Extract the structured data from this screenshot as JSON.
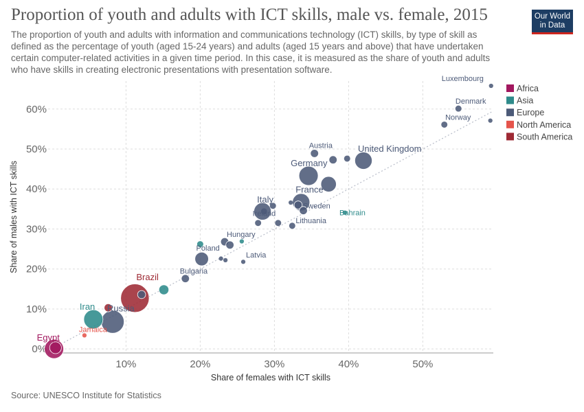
{
  "header": {
    "title": "Proportion of youth and adults with ICT skills, male vs. female, 2015",
    "subtitle": "The proportion of youth and adults with information and communications technology (ICT) skills, by type of skill as defined as the percentage of youth (aged 15-24 years) and adults (aged 15 years and above) that have undertaken certain computer-related activities in a given time period. In this case, it is measured as the share of youth and adults who have skills in creating electronic presentations with presentation software.",
    "logo_line1": "Our World",
    "logo_line2": "in Data"
  },
  "footer": {
    "source": "Source: UNESCO Institute for Statistics"
  },
  "colors": {
    "Africa": "#a2185f",
    "Asia": "#2e8b8b",
    "Europe": "#4c5a78",
    "North America": "#e5544b",
    "South America": "#9e2a34",
    "grid": "#dddddd",
    "reference_line": "#b7bcc8"
  },
  "chart_data": {
    "type": "scatter",
    "title": "Proportion of youth and adults with ICT skills, male vs. female, 2015",
    "xlabel": "Share of females with ICT skills",
    "ylabel": "Share of males with ICT skills",
    "xlim": [
      -0.5,
      59.5
    ],
    "ylim": [
      -1,
      67
    ],
    "x_ticks": [
      10,
      20,
      30,
      40,
      50
    ],
    "x_tick_labels": [
      "10%",
      "20%",
      "30%",
      "40%",
      "50%"
    ],
    "y_ticks": [
      0,
      10,
      20,
      30,
      40,
      50,
      60
    ],
    "y_tick_labels": [
      "0%",
      "10%",
      "20%",
      "30%",
      "40%",
      "50%",
      "60%"
    ],
    "grid": true,
    "reference_line": "y = x",
    "legend_position": "right",
    "legend": [
      "Africa",
      "Asia",
      "Europe",
      "North America",
      "South America"
    ],
    "points": [
      {
        "label": "Luxembourg",
        "region": "Europe",
        "x": 59.2,
        "y": 65.8,
        "size": 1
      },
      {
        "label": "Denmark",
        "region": "Europe",
        "x": 54.8,
        "y": 60.1,
        "size": 2
      },
      {
        "label": "Norway",
        "region": "Europe",
        "x": 52.9,
        "y": 56.1,
        "size": 2
      },
      {
        "label": "",
        "region": "Europe",
        "x": 59.1,
        "y": 57.1,
        "size": 1
      },
      {
        "label": "Austria",
        "region": "Europe",
        "x": 35.4,
        "y": 48.9,
        "size": 3
      },
      {
        "label": "United Kingdom",
        "region": "Europe",
        "x": 42.0,
        "y": 47.1,
        "size": 8
      },
      {
        "label": "",
        "region": "Europe",
        "x": 37.9,
        "y": 47.3,
        "size": 3
      },
      {
        "label": "",
        "region": "Europe",
        "x": 39.8,
        "y": 47.6,
        "size": 2
      },
      {
        "label": "Germany",
        "region": "Europe",
        "x": 34.6,
        "y": 43.3,
        "size": 9
      },
      {
        "label": "",
        "region": "Europe",
        "x": 37.3,
        "y": 41.2,
        "size": 7
      },
      {
        "label": "France",
        "region": "Europe",
        "x": 33.6,
        "y": 36.7,
        "size": 8
      },
      {
        "label": "Sweden",
        "region": "Europe",
        "x": 33.2,
        "y": 36.0,
        "size": 3
      },
      {
        "label": "",
        "region": "Europe",
        "x": 32.2,
        "y": 36.6,
        "size": 1
      },
      {
        "label": "",
        "region": "Europe",
        "x": 33.9,
        "y": 34.6,
        "size": 3
      },
      {
        "label": "Italy",
        "region": "Europe",
        "x": 28.4,
        "y": 34.4,
        "size": 8
      },
      {
        "label": "",
        "region": "Europe",
        "x": 29.8,
        "y": 35.8,
        "size": 2
      },
      {
        "label": "",
        "region": "Europe",
        "x": 28.6,
        "y": 34.4,
        "size": 2
      },
      {
        "label": "Ireland",
        "region": "Europe",
        "x": 27.8,
        "y": 31.5,
        "size": 2
      },
      {
        "label": "",
        "region": "Europe",
        "x": 30.5,
        "y": 31.5,
        "size": 2
      },
      {
        "label": "Lithuania",
        "region": "Europe",
        "x": 32.4,
        "y": 30.8,
        "size": 2
      },
      {
        "label": "Bahrain",
        "region": "Asia",
        "x": 39.5,
        "y": 34.1,
        "size": 1
      },
      {
        "label": "Hungary",
        "region": "Europe",
        "x": 23.3,
        "y": 26.8,
        "size": 3
      },
      {
        "label": "",
        "region": "Europe",
        "x": 24.0,
        "y": 26.0,
        "size": 3
      },
      {
        "label": "",
        "region": "Asia",
        "x": 25.6,
        "y": 26.9,
        "size": 1
      },
      {
        "label": "",
        "region": "Asia",
        "x": 20.0,
        "y": 26.2,
        "size": 2
      },
      {
        "label": "Poland",
        "region": "Europe",
        "x": 20.2,
        "y": 22.5,
        "size": 6
      },
      {
        "label": "",
        "region": "Europe",
        "x": 22.8,
        "y": 22.6,
        "size": 1
      },
      {
        "label": "",
        "region": "Europe",
        "x": 23.4,
        "y": 22.2,
        "size": 1
      },
      {
        "label": "Latvia",
        "region": "Europe",
        "x": 25.8,
        "y": 21.8,
        "size": 1
      },
      {
        "label": "Bulgaria",
        "region": "Europe",
        "x": 18.0,
        "y": 17.6,
        "size": 3
      },
      {
        "label": "",
        "region": "Asia",
        "x": 15.1,
        "y": 14.8,
        "size": 4
      },
      {
        "label": "Brazil",
        "region": "South America",
        "x": 11.2,
        "y": 12.7,
        "size": 14
      },
      {
        "label": "",
        "region": "Europe",
        "x": 12.1,
        "y": 13.6,
        "size": 3
      },
      {
        "label": "Iran",
        "region": "Asia",
        "x": 5.6,
        "y": 7.4,
        "size": 9
      },
      {
        "label": "",
        "region": "South America",
        "x": 7.6,
        "y": 10.3,
        "size": 3
      },
      {
        "label": "Russia",
        "region": "Europe",
        "x": 8.2,
        "y": 6.8,
        "size": 11
      },
      {
        "label": "Jamaica",
        "region": "North America",
        "x": 4.4,
        "y": 3.4,
        "size": 1
      },
      {
        "label": "Egypt",
        "region": "Africa",
        "x": 0.3,
        "y": 0.0,
        "size": 9
      },
      {
        "label": "",
        "region": "Africa",
        "x": 0.5,
        "y": 0.3,
        "size": 5
      }
    ]
  }
}
